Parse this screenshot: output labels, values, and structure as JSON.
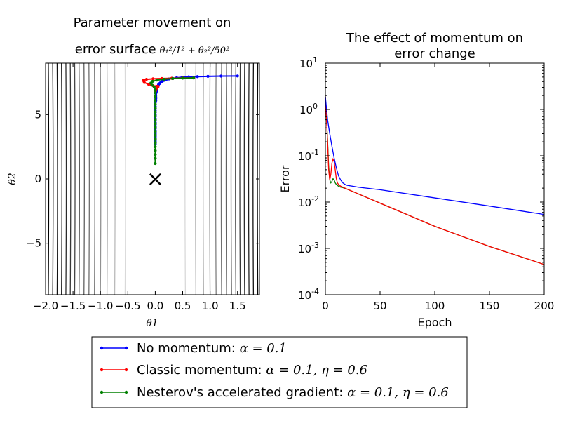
{
  "chart_data": [
    {
      "type": "line",
      "title": {
        "line1": "Parameter movement on",
        "line2": "error surface",
        "formula": "θ₁²/1² + θ₂²/50²"
      },
      "xlabel": "θ1",
      "ylabel": "θ2",
      "xlim": [
        -2.0,
        1.9
      ],
      "ylim": [
        -9.0,
        9.0
      ],
      "x_ticks": [
        -2.0,
        -1.5,
        -1.0,
        -0.5,
        0.0,
        0.5,
        1.0,
        1.5
      ],
      "x_tick_labels": [
        "−2.0",
        "−1.5",
        "−1.0",
        "−0.5",
        "0.0",
        "0.5",
        "1.0",
        "1.5"
      ],
      "y_ticks": [
        5,
        0,
        -5
      ],
      "y_tick_labels": [
        "5",
        "0",
        "−5"
      ],
      "minimum_marker": {
        "x": 0.0,
        "y": 0.0,
        "symbol": "×"
      },
      "contour_x_levels": [
        -1.95,
        -1.87,
        -1.79,
        -1.71,
        -1.63,
        -1.55,
        -1.47,
        -1.39,
        -1.3,
        -1.21,
        -1.11,
        -1.0,
        -0.88,
        -0.74,
        -0.55,
        0.55,
        0.74,
        0.88,
        1.0,
        1.11,
        1.21,
        1.3,
        1.39,
        1.47,
        1.55,
        1.63,
        1.71,
        1.79,
        1.87
      ],
      "series": [
        {
          "name": "No momentum",
          "color": "#0000ff",
          "x": [
            1.5,
            1.2,
            0.96,
            0.77,
            0.61,
            0.49,
            0.39,
            0.31,
            0.25,
            0.2,
            0.16,
            0.13,
            0.1,
            0.08,
            0.06,
            0.05,
            0.04,
            0.03,
            0.02,
            0.02,
            0.01,
            0.01,
            0.01,
            0.01,
            0.01,
            0.0,
            0.0,
            0.0,
            0.0,
            0.0,
            0.0,
            0.0,
            0.0,
            0.0,
            0.0,
            0.0,
            0.0,
            0.0,
            0.0,
            0.0,
            0.0,
            0.0,
            0.0,
            0.0,
            0.0,
            0.0,
            0.0,
            0.0,
            0.0,
            0.0
          ],
          "y": [
            8.0,
            7.99,
            7.97,
            7.95,
            7.93,
            7.9,
            7.86,
            7.82,
            7.77,
            7.72,
            7.66,
            7.59,
            7.51,
            7.42,
            7.33,
            7.23,
            7.12,
            7.01,
            6.89,
            6.77,
            6.64,
            6.5,
            6.37,
            6.23,
            6.08,
            5.93,
            5.78,
            5.63,
            5.47,
            5.32,
            5.16,
            5.0,
            4.85,
            4.69,
            4.53,
            4.38,
            4.22,
            4.07,
            3.92,
            3.77,
            3.63,
            3.5,
            3.4,
            3.3,
            3.2,
            3.1,
            3.0,
            2.9,
            2.8,
            2.7
          ]
        },
        {
          "name": "Classic momentum",
          "color": "#ff0000",
          "x": [
            0.7,
            0.5,
            0.3,
            0.12,
            -0.04,
            -0.16,
            -0.22,
            -0.2,
            -0.12,
            -0.04,
            0.02,
            0.05,
            0.05,
            0.03,
            0.01,
            0.0
          ],
          "y": [
            7.85,
            7.84,
            7.82,
            7.8,
            7.78,
            7.74,
            7.65,
            7.5,
            7.35,
            7.25,
            7.2,
            7.2,
            7.15,
            7.05,
            6.95,
            6.8
          ]
        },
        {
          "name": "Nesterov's accelerated gradient",
          "color": "#008000",
          "x": [
            0.7,
            0.5,
            0.32,
            0.16,
            0.03,
            -0.05,
            -0.08,
            -0.06,
            -0.02,
            0.0,
            0.0,
            0.0,
            0.0,
            0.0,
            0.0,
            0.0,
            0.0,
            0.0,
            0.0,
            0.0,
            0.0,
            0.0,
            0.0,
            0.0,
            0.0,
            0.0,
            0.0,
            0.0,
            0.0
          ],
          "y": [
            7.85,
            7.83,
            7.8,
            7.75,
            7.68,
            7.58,
            7.45,
            7.3,
            7.15,
            6.95,
            6.7,
            6.4,
            6.1,
            5.8,
            5.5,
            5.2,
            4.9,
            4.6,
            4.3,
            4.0,
            3.7,
            3.4,
            3.1,
            2.8,
            2.5,
            2.2,
            1.9,
            1.6,
            1.2
          ]
        }
      ]
    },
    {
      "type": "line",
      "title": {
        "line1": "The effect of momentum on",
        "line2": "error change"
      },
      "xlabel": "Epoch",
      "ylabel": "Error",
      "xlim": [
        0,
        200
      ],
      "ylim_log10": [
        -4,
        1
      ],
      "y_scale": "log",
      "x_ticks": [
        0,
        50,
        100,
        150,
        200
      ],
      "x_tick_labels": [
        "0",
        "50",
        "100",
        "150",
        "200"
      ],
      "y_tick_exponents": [
        1,
        0,
        -1,
        -2,
        -3,
        -4
      ],
      "y_tick_base": "10",
      "series": [
        {
          "name": "No momentum",
          "color": "#0000ff",
          "x": [
            0,
            2,
            4,
            6,
            8,
            10,
            12,
            14,
            16,
            18,
            20,
            25,
            30,
            50,
            100,
            150,
            200
          ],
          "y": [
            1.9,
            0.6,
            0.3,
            0.16,
            0.09,
            0.055,
            0.037,
            0.03,
            0.026,
            0.024,
            0.023,
            0.022,
            0.021,
            0.0185,
            0.0123,
            0.0082,
            0.0054
          ]
        },
        {
          "name": "Classic momentum",
          "color": "#ff0000",
          "x": [
            0,
            2,
            3,
            4,
            5,
            6,
            7,
            8,
            9,
            10,
            11,
            12,
            13,
            14,
            16,
            20,
            50,
            100,
            150,
            200
          ],
          "y": [
            1.9,
            0.2,
            0.05,
            0.03,
            0.04,
            0.07,
            0.085,
            0.075,
            0.05,
            0.032,
            0.026,
            0.024,
            0.023,
            0.022,
            0.021,
            0.019,
            0.0095,
            0.003,
            0.0011,
            0.00045
          ]
        },
        {
          "name": "Nesterov's accelerated gradient",
          "color": "#008000",
          "x": [
            0,
            2,
            3,
            4,
            5,
            6,
            7,
            8,
            9,
            10,
            11,
            12,
            14,
            16,
            20,
            50,
            100,
            150,
            200
          ],
          "y": [
            1.9,
            0.22,
            0.06,
            0.03,
            0.026,
            0.028,
            0.032,
            0.03,
            0.026,
            0.024,
            0.023,
            0.022,
            0.021,
            0.0205,
            0.019,
            0.0095,
            0.003,
            0.0011,
            0.00045
          ]
        }
      ]
    }
  ],
  "legend": {
    "placement": "bottom-center",
    "entries": [
      {
        "text": "No momentum: ",
        "math": "α = 0.1",
        "color": "#0000ff"
      },
      {
        "text": "Classic momentum: ",
        "math": "α = 0.1, η = 0.6",
        "color": "#ff0000"
      },
      {
        "text": "Nesterov's accelerated gradient: ",
        "math": "α = 0.1, η = 0.6",
        "color": "#008000"
      }
    ]
  }
}
